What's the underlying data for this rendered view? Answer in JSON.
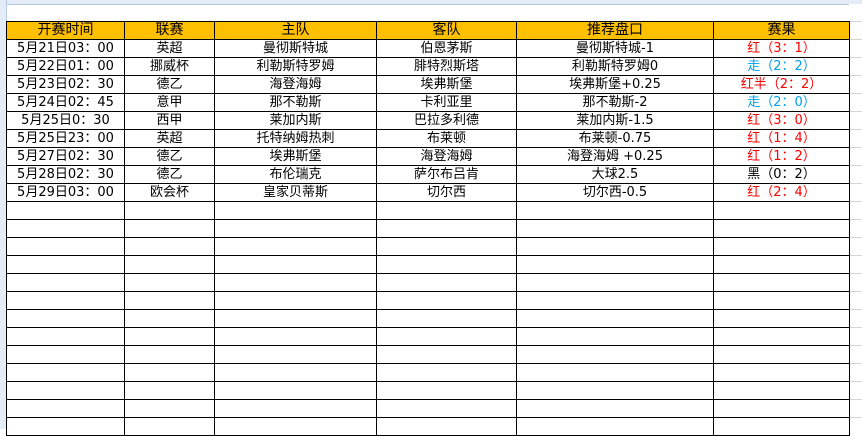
{
  "colors": {
    "header_bg": "#ffc000",
    "win": "#ff0000",
    "push": "#00a0e8",
    "loss": "#000000"
  },
  "columns": [
    "开赛时间",
    "联赛",
    "主队",
    "客队",
    "推荐盘口",
    "赛果"
  ],
  "rows": [
    {
      "time": "5月21日03：00",
      "league": "英超",
      "home": "曼彻斯特城",
      "away": "伯恩茅斯",
      "pick": "曼彻斯特城-1",
      "result": "红（3：1）",
      "status": "red"
    },
    {
      "time": "5月22日01：00",
      "league": "挪威杯",
      "home": "利勒斯特罗姆",
      "away": "腓特烈斯塔",
      "pick": "利勒斯特罗姆0",
      "result": "走（2：2）",
      "status": "blue"
    },
    {
      "time": "5月23日02：30",
      "league": "德乙",
      "home": "海登海姆",
      "away": "埃弗斯堡",
      "pick": "埃弗斯堡+0.25",
      "result": "红半（2：2）",
      "status": "red"
    },
    {
      "time": "5月24日02：45",
      "league": "意甲",
      "home": "那不勒斯",
      "away": "卡利亚里",
      "pick": "那不勒斯-2",
      "result": "走（2：0）",
      "status": "blue"
    },
    {
      "time": "5月25日0：30",
      "league": "西甲",
      "home": "莱加内斯",
      "away": "巴拉多利德",
      "pick": "莱加内斯-1.5",
      "result": "红（3：0）",
      "status": "red"
    },
    {
      "time": "5月25日23：00",
      "league": "英超",
      "home": "托特纳姆热刺",
      "away": "布莱顿",
      "pick": "布莱顿-0.75",
      "result": "红（1：4）",
      "status": "red"
    },
    {
      "time": "5月27日02：30",
      "league": "德乙",
      "home": "埃弗斯堡",
      "away": "海登海姆",
      "pick": "海登海姆 +0.25",
      "result": "红（1：2）",
      "status": "red"
    },
    {
      "time": "5月28日02：30",
      "league": "德乙",
      "home": "布伦瑞克",
      "away": "萨尔布吕肯",
      "pick": "大球2.5",
      "result": "黑（0：2）",
      "status": "black"
    },
    {
      "time": "5月29日03：00",
      "league": "欧会杯",
      "home": "皇家贝蒂斯",
      "away": "切尔西",
      "pick": "切尔西-0.5",
      "result": "红（2：4）",
      "status": "red"
    }
  ]
}
